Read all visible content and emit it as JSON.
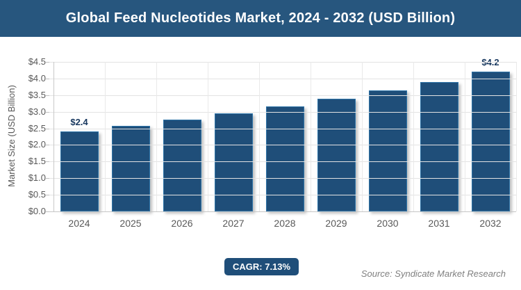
{
  "header": {
    "title": "Global Feed Nucleotides Market, 2024 - 2032 (USD Billion)",
    "bg_color": "#27567E"
  },
  "chart_data": {
    "type": "bar",
    "title": "Global Feed Nucleotides Market, 2024 - 2032 (USD Billion)",
    "categories": [
      "2024",
      "2025",
      "2026",
      "2027",
      "2028",
      "2029",
      "2030",
      "2031",
      "2032"
    ],
    "values": [
      2.4,
      2.58,
      2.76,
      2.96,
      3.17,
      3.4,
      3.64,
      3.9,
      4.2
    ],
    "value_labels": [
      "$2.4",
      "",
      "",
      "",
      "",
      "",
      "",
      "",
      "$4.2"
    ],
    "xlabel": "",
    "ylabel": "Market Size (USD Billion)",
    "ylim": [
      0,
      4.5
    ],
    "ytick_step": 0.5,
    "ytick_labels_top_to_bottom": [
      "$4.5",
      "$4.0",
      "$3.5",
      "$3.0",
      "$2.5",
      "$2.0",
      "$1.5",
      "$1.0",
      "$0.5",
      "$0.0"
    ],
    "grid": true,
    "legend": false,
    "bar_color": "#1F4E79",
    "bar_border_color": "#2E74A8",
    "value_label_color": "#17375E",
    "axis_text_color": "#595959"
  },
  "footer": {
    "cagr_label": "CAGR: 7.13%",
    "cagr_bg_color": "#1F4E79",
    "source": "Source: Syndicate Market Research"
  }
}
